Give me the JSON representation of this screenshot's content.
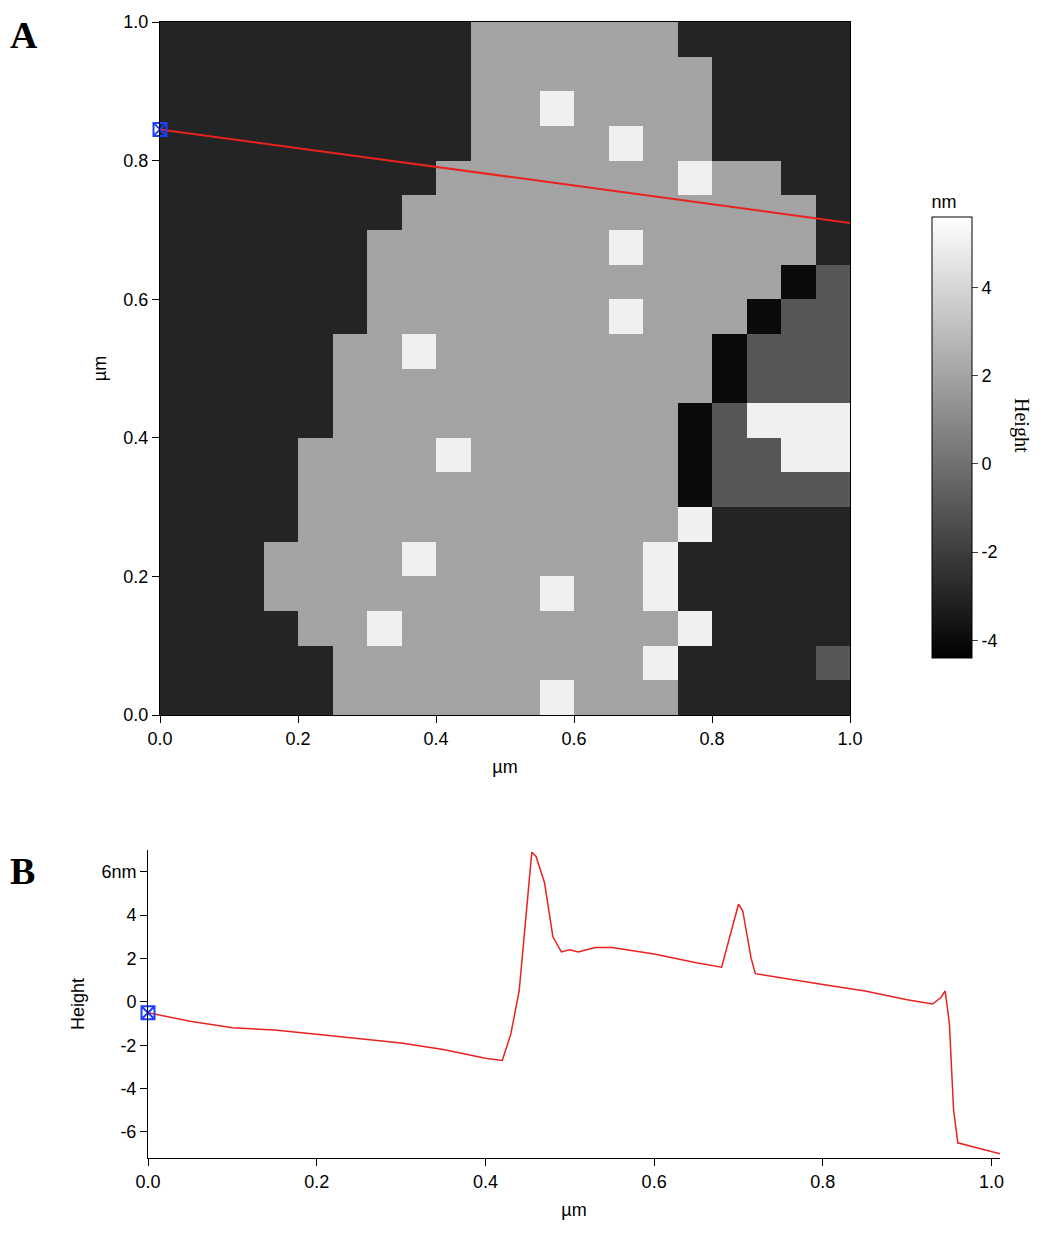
{
  "chart_data": [
    {
      "type": "heatmap",
      "title": "A",
      "x_label": "µm",
      "y_label": "µm",
      "x": [
        0.025,
        0.075,
        0.125,
        0.175,
        0.225,
        0.275,
        0.325,
        0.375,
        0.425,
        0.475,
        0.525,
        0.575,
        0.625,
        0.675,
        0.725,
        0.775,
        0.825,
        0.875,
        0.925,
        0.975
      ],
      "y": [
        0.025,
        0.075,
        0.125,
        0.175,
        0.225,
        0.275,
        0.325,
        0.375,
        0.425,
        0.475,
        0.525,
        0.575,
        0.625,
        0.675,
        0.725,
        0.775,
        0.825,
        0.875,
        0.925,
        0.975
      ],
      "z": [
        [
          -3,
          -3,
          -3,
          -3,
          -3,
          2,
          2,
          2,
          2,
          2,
          2,
          5,
          2,
          2,
          2,
          -3,
          -3,
          -3,
          -3,
          -3
        ],
        [
          -3,
          -3,
          -3,
          -3,
          -3,
          2,
          2,
          2,
          2,
          2,
          2,
          2,
          2,
          2,
          5,
          -3,
          -3,
          -3,
          -3,
          -1
        ],
        [
          -3,
          -3,
          -3,
          -3,
          2,
          2,
          5,
          2,
          2,
          2,
          2,
          2,
          2,
          2,
          2,
          5,
          -3,
          -3,
          -3,
          -3
        ],
        [
          -3,
          -3,
          -3,
          2,
          2,
          2,
          2,
          2,
          2,
          2,
          2,
          5,
          2,
          2,
          5,
          -3,
          -3,
          -3,
          -3,
          -3
        ],
        [
          -3,
          -3,
          -3,
          2,
          2,
          2,
          2,
          5,
          2,
          2,
          2,
          2,
          2,
          2,
          5,
          -3,
          -3,
          -3,
          -3,
          -3
        ],
        [
          -3,
          -3,
          -3,
          -3,
          2,
          2,
          2,
          2,
          2,
          2,
          2,
          2,
          2,
          2,
          2,
          5,
          -3,
          -3,
          -3,
          -3
        ],
        [
          -3,
          -3,
          -3,
          -3,
          2,
          2,
          2,
          2,
          2,
          2,
          2,
          2,
          2,
          2,
          2,
          -4,
          -1,
          -1,
          -1,
          -1
        ],
        [
          -3,
          -3,
          -3,
          -3,
          2,
          2,
          2,
          2,
          5,
          2,
          2,
          2,
          2,
          2,
          2,
          -4,
          -1,
          -1,
          5,
          5
        ],
        [
          -3,
          -3,
          -3,
          -3,
          -3,
          2,
          2,
          2,
          2,
          2,
          2,
          2,
          2,
          2,
          2,
          -4,
          -1,
          5,
          5,
          5
        ],
        [
          -3,
          -3,
          -3,
          -3,
          -3,
          2,
          2,
          2,
          2,
          2,
          2,
          2,
          2,
          2,
          2,
          2,
          -4,
          -1,
          -1,
          -1
        ],
        [
          -3,
          -3,
          -3,
          -3,
          -3,
          2,
          2,
          5,
          2,
          2,
          2,
          2,
          2,
          2,
          2,
          2,
          -4,
          -1,
          -1,
          -1
        ],
        [
          -3,
          -3,
          -3,
          -3,
          -3,
          -3,
          2,
          2,
          2,
          2,
          2,
          2,
          2,
          5,
          2,
          2,
          2,
          -4,
          -1,
          -1
        ],
        [
          -3,
          -3,
          -3,
          -3,
          -3,
          -3,
          2,
          2,
          2,
          2,
          2,
          2,
          2,
          2,
          2,
          2,
          2,
          2,
          -4,
          -1
        ],
        [
          -3,
          -3,
          -3,
          -3,
          -3,
          -3,
          2,
          2,
          2,
          2,
          2,
          2,
          2,
          5,
          2,
          2,
          2,
          2,
          2,
          -3
        ],
        [
          -3,
          -3,
          -3,
          -3,
          -3,
          -3,
          -3,
          2,
          2,
          2,
          2,
          2,
          2,
          2,
          2,
          2,
          2,
          2,
          2,
          -3
        ],
        [
          -3,
          -3,
          -3,
          -3,
          -3,
          -3,
          -3,
          -3,
          2,
          2,
          2,
          2,
          2,
          2,
          2,
          5,
          2,
          2,
          -3,
          -3
        ],
        [
          -3,
          -3,
          -3,
          -3,
          -3,
          -3,
          -3,
          -3,
          -3,
          2,
          2,
          2,
          2,
          5,
          2,
          2,
          -3,
          -3,
          -3,
          -3
        ],
        [
          -3,
          -3,
          -3,
          -3,
          -3,
          -3,
          -3,
          -3,
          -3,
          2,
          2,
          5,
          2,
          2,
          2,
          2,
          -3,
          -3,
          -3,
          -3
        ],
        [
          -3,
          -3,
          -3,
          -3,
          -3,
          -3,
          -3,
          -3,
          -3,
          2,
          2,
          2,
          2,
          2,
          2,
          2,
          -3,
          -3,
          -3,
          -3
        ],
        [
          -3,
          -3,
          -3,
          -3,
          -3,
          -3,
          -3,
          -3,
          -3,
          2,
          2,
          2,
          2,
          2,
          2,
          -3,
          -3,
          -3,
          -3,
          -3
        ]
      ],
      "xlim": [
        0,
        1
      ],
      "ylim": [
        0,
        1
      ],
      "xticks": [
        {
          "value": 0,
          "label": "0.0"
        },
        0.2,
        0.4,
        0.6,
        0.8,
        {
          "value": 1,
          "label": "1.0"
        }
      ],
      "yticks": [
        {
          "value": 0,
          "label": "0.0"
        },
        0.2,
        0.4,
        0.6,
        0.8,
        {
          "value": 1,
          "label": "1.0"
        }
      ],
      "colorbar": {
        "title": "nm",
        "label": "Height",
        "range": [
          -4.4,
          5.6
        ],
        "ticks": [
          -4,
          -2,
          0,
          2,
          4
        ],
        "colorscale": [
          "#000000",
          "#ffffff"
        ]
      },
      "profile_line": {
        "x": [
          0,
          1
        ],
        "y": [
          0.845,
          0.71
        ],
        "color": "#e8231f"
      },
      "cursor": {
        "x": 0,
        "y": 0.845,
        "color": "#1f3fff"
      }
    },
    {
      "type": "line",
      "title": "B",
      "x_label": "µm",
      "y_label": "Height",
      "x": [
        0,
        0.05,
        0.1,
        0.15,
        0.2,
        0.25,
        0.3,
        0.35,
        0.4,
        0.42,
        0.43,
        0.44,
        0.45,
        0.455,
        0.46,
        0.47,
        0.48,
        0.49,
        0.5,
        0.51,
        0.53,
        0.55,
        0.6,
        0.65,
        0.68,
        0.69,
        0.7,
        0.705,
        0.715,
        0.72,
        0.75,
        0.8,
        0.85,
        0.9,
        0.93,
        0.94,
        0.945,
        0.95,
        0.955,
        0.96,
        0.98,
        1.0,
        1.01
      ],
      "values": [
        -0.5,
        -0.9,
        -1.2,
        -1.3,
        -1.5,
        -1.7,
        -1.9,
        -2.2,
        -2.6,
        -2.7,
        -1.5,
        0.5,
        5,
        6.9,
        6.7,
        5.5,
        3,
        2.3,
        2.4,
        2.3,
        2.5,
        2.5,
        2.2,
        1.8,
        1.6,
        3,
        4.5,
        4.2,
        2,
        1.3,
        1.1,
        0.8,
        0.5,
        0.1,
        -0.1,
        0.2,
        0.5,
        -1,
        -5,
        -6.5,
        -6.7,
        -6.9,
        -7
      ],
      "color": "#e8231f",
      "xlim": [
        0,
        1.01
      ],
      "ylim": [
        -7.2,
        7
      ],
      "xticks": [
        {
          "value": 0,
          "label": "0.0"
        },
        0.2,
        0.4,
        0.6,
        0.8,
        {
          "value": 1,
          "label": "1.0"
        }
      ],
      "yticks": [
        -6,
        -4,
        -2,
        0,
        2,
        4,
        {
          "value": 6,
          "label": "6nm"
        }
      ],
      "cursor": {
        "x": 0,
        "y": -0.5,
        "color": "#1f3fff"
      },
      "grid": false
    }
  ]
}
